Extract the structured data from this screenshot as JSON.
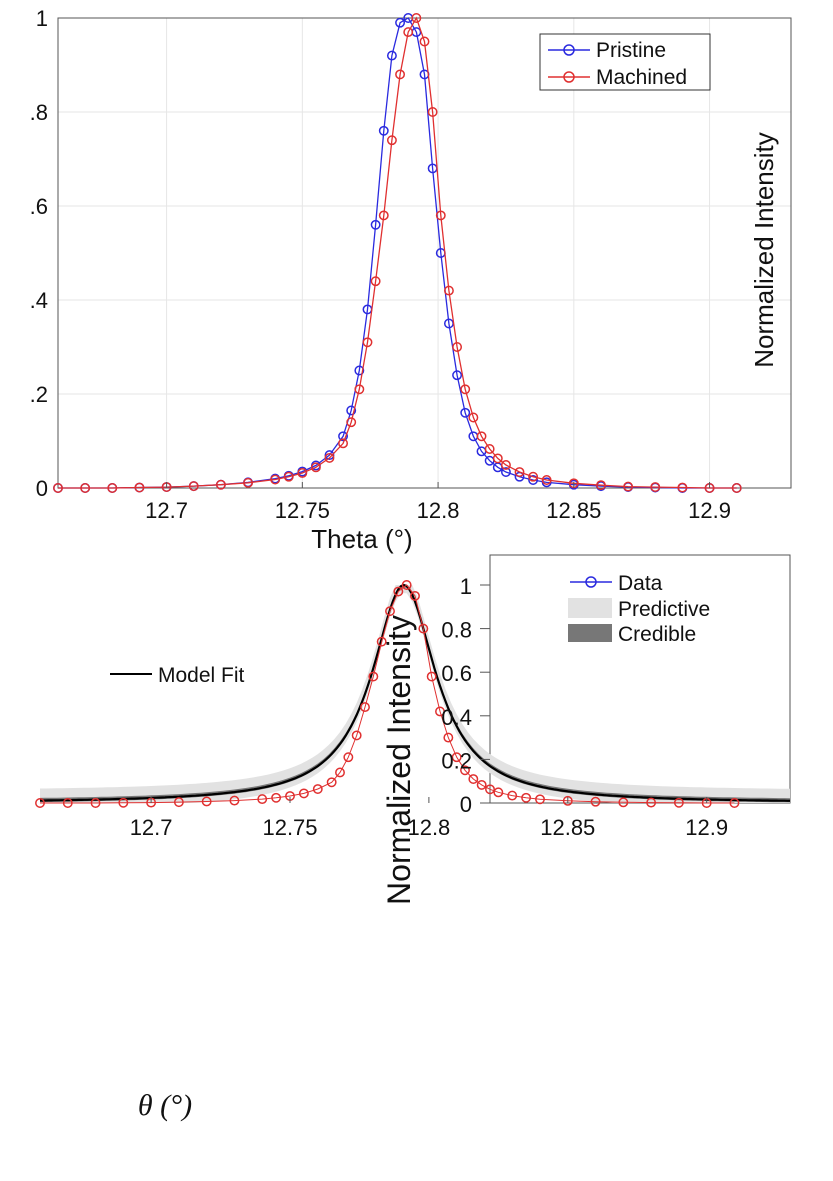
{
  "chart_data": [
    {
      "type": "line",
      "xlabel": "Theta (°)",
      "ylabel": "Normalized Intensity",
      "xlim": [
        12.66,
        12.93
      ],
      "ylim": [
        0,
        1
      ],
      "xticks": [
        "12.7",
        "12.75",
        "12.8",
        "12.85",
        "12.9"
      ],
      "yticks": [
        "0",
        ".2",
        ".4",
        ".6",
        ".8",
        "1"
      ],
      "grid": true,
      "legend_position": "top-right",
      "series": [
        {
          "name": "Pristine",
          "color": "#2a2adf",
          "x": [
            12.66,
            12.67,
            12.68,
            12.69,
            12.7,
            12.71,
            12.72,
            12.73,
            12.74,
            12.745,
            12.75,
            12.755,
            12.76,
            12.765,
            12.768,
            12.771,
            12.774,
            12.777,
            12.78,
            12.783,
            12.786,
            12.789,
            12.792,
            12.795,
            12.798,
            12.801,
            12.804,
            12.807,
            12.81,
            12.813,
            12.816,
            12.819,
            12.822,
            12.825,
            12.83,
            12.835,
            12.84,
            12.85,
            12.86,
            12.87,
            12.88,
            12.89,
            12.9,
            12.91
          ],
          "y": [
            0.0,
            0.0,
            0.0,
            0.001,
            0.002,
            0.004,
            0.007,
            0.012,
            0.02,
            0.026,
            0.035,
            0.048,
            0.07,
            0.11,
            0.165,
            0.25,
            0.38,
            0.56,
            0.76,
            0.92,
            0.99,
            1.0,
            0.97,
            0.88,
            0.68,
            0.5,
            0.35,
            0.24,
            0.16,
            0.11,
            0.078,
            0.058,
            0.044,
            0.034,
            0.024,
            0.017,
            0.012,
            0.007,
            0.004,
            0.002,
            0.001,
            0.0,
            0.0,
            0.0
          ]
        },
        {
          "name": "Machined",
          "color": "#e03030",
          "x": [
            12.66,
            12.67,
            12.68,
            12.69,
            12.7,
            12.71,
            12.72,
            12.73,
            12.74,
            12.745,
            12.75,
            12.755,
            12.76,
            12.765,
            12.768,
            12.771,
            12.774,
            12.777,
            12.78,
            12.783,
            12.786,
            12.789,
            12.792,
            12.795,
            12.798,
            12.801,
            12.804,
            12.807,
            12.81,
            12.813,
            12.816,
            12.819,
            12.822,
            12.825,
            12.83,
            12.835,
            12.84,
            12.85,
            12.86,
            12.87,
            12.88,
            12.89,
            12.9,
            12.91
          ],
          "y": [
            0.0,
            0.0,
            0.0,
            0.001,
            0.002,
            0.004,
            0.007,
            0.011,
            0.018,
            0.024,
            0.032,
            0.044,
            0.064,
            0.095,
            0.14,
            0.21,
            0.31,
            0.44,
            0.58,
            0.74,
            0.88,
            0.97,
            1.0,
            0.95,
            0.8,
            0.58,
            0.42,
            0.3,
            0.21,
            0.15,
            0.11,
            0.083,
            0.063,
            0.049,
            0.034,
            0.024,
            0.017,
            0.01,
            0.006,
            0.003,
            0.002,
            0.001,
            0.0,
            0.0
          ]
        }
      ]
    },
    {
      "type": "line",
      "xlabel": "θ (°)",
      "ylabel": "Normalized Intensity",
      "xlim": [
        12.66,
        12.93
      ],
      "ylim": [
        0,
        1
      ],
      "xticks": [
        "12.7",
        "12.75",
        "12.8",
        "12.85",
        "12.9"
      ],
      "yticks": [
        "0",
        "0.2",
        "0.4",
        "0.6",
        "0.8",
        "1"
      ],
      "grid": false,
      "legend_position": "top-right",
      "legend": [
        "Data",
        "Predictive",
        "Credible",
        "Model Fit"
      ],
      "series": [
        {
          "name": "Data",
          "color": "#e03030",
          "marker_edge": "#2a2adf",
          "x": [
            12.66,
            12.67,
            12.68,
            12.69,
            12.7,
            12.71,
            12.72,
            12.73,
            12.74,
            12.745,
            12.75,
            12.755,
            12.76,
            12.765,
            12.768,
            12.771,
            12.774,
            12.777,
            12.78,
            12.783,
            12.786,
            12.789,
            12.792,
            12.795,
            12.798,
            12.801,
            12.804,
            12.807,
            12.81,
            12.813,
            12.816,
            12.819,
            12.822,
            12.825,
            12.83,
            12.835,
            12.84,
            12.85,
            12.86,
            12.87,
            12.88,
            12.89,
            12.9,
            12.91
          ],
          "y": [
            0.0,
            0.0,
            0.0,
            0.001,
            0.002,
            0.004,
            0.007,
            0.011,
            0.018,
            0.024,
            0.032,
            0.044,
            0.064,
            0.095,
            0.14,
            0.21,
            0.31,
            0.44,
            0.58,
            0.74,
            0.88,
            0.97,
            1.0,
            0.95,
            0.8,
            0.58,
            0.42,
            0.3,
            0.21,
            0.15,
            0.11,
            0.083,
            0.063,
            0.049,
            0.034,
            0.024,
            0.017,
            0.01,
            0.006,
            0.003,
            0.002,
            0.001,
            0.0,
            0.0
          ]
        },
        {
          "name": "Model Fit",
          "color": "#000000",
          "x0": 12.791,
          "width": 0.014,
          "amplitude": 1.0
        },
        {
          "name": "Predictive",
          "color": "#e2e2e2",
          "band_halfwidth": 0.055
        },
        {
          "name": "Credible",
          "color": "#777777",
          "band_halfwidth": 0.012
        }
      ]
    }
  ]
}
